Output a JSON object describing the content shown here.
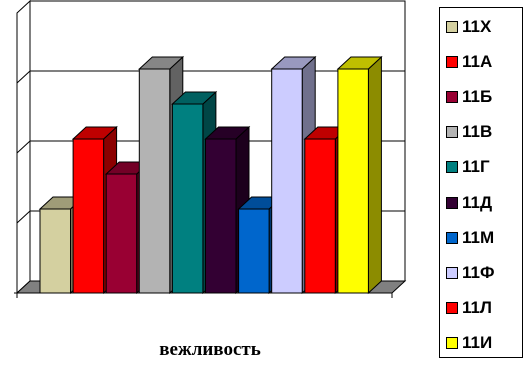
{
  "chart_data": {
    "type": "bar",
    "subtype": "3d-column",
    "xlabel": "вежливость",
    "categories": [
      "вежливость"
    ],
    "ylim": [
      0,
      4
    ],
    "gridlines": true,
    "legend_position": "right",
    "series": [
      {
        "name": "11Х",
        "value": 1.2,
        "color": "#d4d0a0"
      },
      {
        "name": "11А",
        "value": 2.2,
        "color": "#ff0000"
      },
      {
        "name": "11Б",
        "value": 1.7,
        "color": "#990033"
      },
      {
        "name": "11В",
        "value": 3.2,
        "color": "#b3b3b3"
      },
      {
        "name": "11Г",
        "value": 2.7,
        "color": "#008080"
      },
      {
        "name": "11Д",
        "value": 2.2,
        "color": "#330033"
      },
      {
        "name": "11М",
        "value": 1.2,
        "color": "#0066cc"
      },
      {
        "name": "11Ф",
        "value": 3.2,
        "color": "#ccccff"
      },
      {
        "name": "11Л",
        "value": 2.2,
        "color": "#ff0000"
      },
      {
        "name": "11И",
        "value": 3.2,
        "color": "#ffff00"
      }
    ]
  }
}
